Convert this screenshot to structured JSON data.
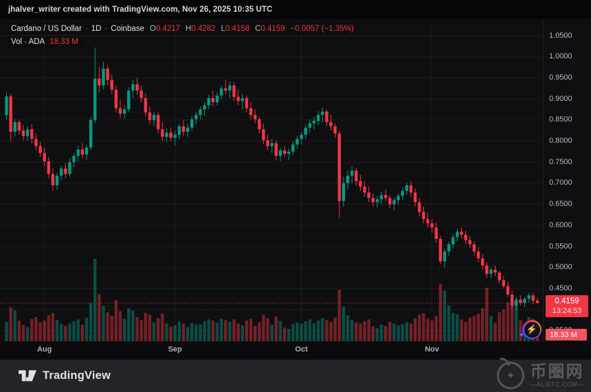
{
  "attribution": {
    "text": "jhalver_writer created with TradingView.com, Nov 26, 2025 10:35 UTC"
  },
  "legend": {
    "symbol": "Cardano / US Dollar",
    "separator": "·",
    "interval": "1D",
    "exchange": "Coinbase",
    "ohlc": {
      "o_label": "O",
      "o": "0.4217",
      "h_label": "H",
      "h": "0.4282",
      "l_label": "L",
      "l": "0.4158",
      "c_label": "C",
      "c": "0.4159",
      "change": "−0.0057 (−1.35%)"
    },
    "volume_row": {
      "label": "Vol · ADA",
      "value": "18.33 M"
    }
  },
  "price_scale": {
    "badge": {
      "price": "0.4159",
      "countdown": "13:24:53"
    },
    "volume_badge": "18.33 M"
  },
  "footer": {
    "brand": "TradingView"
  },
  "watermark": {
    "site_name": "币圈网",
    "site_domain": "—ALIBTC.COM—",
    "star_icon": "✦"
  },
  "flash_sticker": {
    "bolt_icon": "⚡",
    "spark_icon": "✦"
  },
  "colors": {
    "up": "#089981",
    "down": "#F23645",
    "vol_up": "rgba(8,153,129,0.45)",
    "vol_down": "rgba(242,54,69,0.45)",
    "price_badge_bg": "#F23645",
    "vol_badge_bg": "#F7525F",
    "grid": "rgba(255,255,255,0.06)",
    "axis_text": "#B8BBC2",
    "background": "#0F0F11"
  },
  "chart_data": {
    "type": "candlestick",
    "title": "Cardano / US Dollar · 1D · Coinbase",
    "grid": true,
    "legend_position": "top-left",
    "ylim": [
      0.33,
      1.09
    ],
    "last_close": 0.4159,
    "price_ticks": [
      {
        "label": "1.0500",
        "value": 1.05
      },
      {
        "label": "1.0000",
        "value": 1.0
      },
      {
        "label": "0.9500",
        "value": 0.95
      },
      {
        "label": "0.9000",
        "value": 0.9
      },
      {
        "label": "0.8500",
        "value": 0.85
      },
      {
        "label": "0.8000",
        "value": 0.8
      },
      {
        "label": "0.7500",
        "value": 0.75
      },
      {
        "label": "0.7000",
        "value": 0.7
      },
      {
        "label": "0.6500",
        "value": 0.65
      },
      {
        "label": "0.6000",
        "value": 0.6
      },
      {
        "label": "0.5500",
        "value": 0.55
      },
      {
        "label": "0.5000",
        "value": 0.5
      },
      {
        "label": "0.4500",
        "value": 0.45
      },
      {
        "label": "0.4000",
        "value": 0.4
      },
      {
        "label": "0.3500",
        "value": 0.35
      }
    ],
    "months": [
      {
        "label": "Aug",
        "index": 9
      },
      {
        "label": "Sep",
        "index": 40
      },
      {
        "label": "Oct",
        "index": 70
      },
      {
        "label": "Nov",
        "index": 101
      }
    ],
    "volume_unit": "M",
    "candles_format": [
      "open",
      "high",
      "low",
      "close",
      "volume_millions"
    ],
    "candles": [
      [
        0.862,
        0.915,
        0.85,
        0.906,
        65
      ],
      [
        0.906,
        0.912,
        0.8,
        0.822,
        115
      ],
      [
        0.822,
        0.852,
        0.812,
        0.845,
        105
      ],
      [
        0.845,
        0.85,
        0.815,
        0.825,
        70
      ],
      [
        0.825,
        0.838,
        0.802,
        0.812,
        55
      ],
      [
        0.812,
        0.835,
        0.8,
        0.828,
        48
      ],
      [
        0.828,
        0.84,
        0.795,
        0.805,
        75
      ],
      [
        0.805,
        0.818,
        0.778,
        0.788,
        82
      ],
      [
        0.788,
        0.798,
        0.762,
        0.772,
        64
      ],
      [
        0.772,
        0.785,
        0.74,
        0.752,
        70
      ],
      [
        0.752,
        0.762,
        0.712,
        0.722,
        88
      ],
      [
        0.722,
        0.735,
        0.682,
        0.695,
        96
      ],
      [
        0.695,
        0.725,
        0.685,
        0.718,
        72
      ],
      [
        0.718,
        0.742,
        0.708,
        0.735,
        58
      ],
      [
        0.735,
        0.748,
        0.712,
        0.722,
        52
      ],
      [
        0.722,
        0.758,
        0.715,
        0.75,
        60
      ],
      [
        0.75,
        0.772,
        0.738,
        0.765,
        68
      ],
      [
        0.765,
        0.788,
        0.752,
        0.78,
        74
      ],
      [
        0.78,
        0.795,
        0.758,
        0.768,
        56
      ],
      [
        0.768,
        0.792,
        0.755,
        0.785,
        80
      ],
      [
        0.785,
        0.858,
        0.778,
        0.85,
        130
      ],
      [
        0.85,
        1.022,
        0.842,
        0.948,
        280
      ],
      [
        0.948,
        0.975,
        0.915,
        0.932,
        160
      ],
      [
        0.932,
        0.988,
        0.922,
        0.972,
        120
      ],
      [
        0.972,
        0.98,
        0.932,
        0.945,
        98
      ],
      [
        0.945,
        0.958,
        0.912,
        0.922,
        86
      ],
      [
        0.922,
        0.932,
        0.868,
        0.878,
        140
      ],
      [
        0.878,
        0.898,
        0.855,
        0.865,
        102
      ],
      [
        0.865,
        0.885,
        0.852,
        0.875,
        76
      ],
      [
        0.875,
        0.928,
        0.868,
        0.92,
        112
      ],
      [
        0.92,
        0.945,
        0.902,
        0.935,
        104
      ],
      [
        0.935,
        0.95,
        0.91,
        0.92,
        82
      ],
      [
        0.92,
        0.932,
        0.892,
        0.902,
        72
      ],
      [
        0.902,
        0.912,
        0.858,
        0.868,
        96
      ],
      [
        0.868,
        0.882,
        0.84,
        0.85,
        90
      ],
      [
        0.85,
        0.87,
        0.836,
        0.862,
        64
      ],
      [
        0.862,
        0.868,
        0.818,
        0.828,
        78
      ],
      [
        0.828,
        0.845,
        0.8,
        0.81,
        94
      ],
      [
        0.81,
        0.83,
        0.798,
        0.82,
        60
      ],
      [
        0.82,
        0.832,
        0.8,
        0.808,
        50
      ],
      [
        0.808,
        0.825,
        0.79,
        0.815,
        54
      ],
      [
        0.815,
        0.842,
        0.805,
        0.835,
        66
      ],
      [
        0.835,
        0.85,
        0.812,
        0.822,
        60
      ],
      [
        0.822,
        0.84,
        0.81,
        0.832,
        48
      ],
      [
        0.832,
        0.86,
        0.825,
        0.852,
        62
      ],
      [
        0.852,
        0.87,
        0.84,
        0.862,
        56
      ],
      [
        0.862,
        0.882,
        0.852,
        0.875,
        58
      ],
      [
        0.875,
        0.892,
        0.86,
        0.885,
        68
      ],
      [
        0.885,
        0.91,
        0.875,
        0.902,
        74
      ],
      [
        0.902,
        0.92,
        0.882,
        0.892,
        70
      ],
      [
        0.892,
        0.915,
        0.885,
        0.908,
        62
      ],
      [
        0.908,
        0.932,
        0.898,
        0.925,
        76
      ],
      [
        0.925,
        0.945,
        0.912,
        0.92,
        72
      ],
      [
        0.92,
        0.942,
        0.902,
        0.932,
        66
      ],
      [
        0.932,
        0.94,
        0.895,
        0.905,
        74
      ],
      [
        0.905,
        0.922,
        0.885,
        0.895,
        60
      ],
      [
        0.895,
        0.912,
        0.875,
        0.902,
        54
      ],
      [
        0.902,
        0.908,
        0.868,
        0.878,
        70
      ],
      [
        0.878,
        0.892,
        0.852,
        0.862,
        76
      ],
      [
        0.862,
        0.875,
        0.842,
        0.852,
        52
      ],
      [
        0.852,
        0.858,
        0.818,
        0.828,
        64
      ],
      [
        0.828,
        0.842,
        0.792,
        0.802,
        90
      ],
      [
        0.802,
        0.815,
        0.778,
        0.788,
        78
      ],
      [
        0.788,
        0.805,
        0.772,
        0.795,
        56
      ],
      [
        0.795,
        0.802,
        0.755,
        0.765,
        84
      ],
      [
        0.765,
        0.785,
        0.752,
        0.778,
        68
      ],
      [
        0.778,
        0.788,
        0.762,
        0.77,
        46
      ],
      [
        0.77,
        0.782,
        0.755,
        0.775,
        42
      ],
      [
        0.775,
        0.8,
        0.768,
        0.792,
        58
      ],
      [
        0.792,
        0.812,
        0.782,
        0.805,
        64
      ],
      [
        0.805,
        0.822,
        0.792,
        0.815,
        60
      ],
      [
        0.815,
        0.84,
        0.805,
        0.832,
        68
      ],
      [
        0.832,
        0.852,
        0.82,
        0.842,
        74
      ],
      [
        0.842,
        0.858,
        0.828,
        0.848,
        62
      ],
      [
        0.848,
        0.872,
        0.838,
        0.862,
        70
      ],
      [
        0.862,
        0.88,
        0.845,
        0.87,
        78
      ],
      [
        0.87,
        0.875,
        0.835,
        0.845,
        72
      ],
      [
        0.845,
        0.862,
        0.825,
        0.835,
        66
      ],
      [
        0.835,
        0.842,
        0.808,
        0.818,
        80
      ],
      [
        0.818,
        0.825,
        0.618,
        0.658,
        175
      ],
      [
        0.658,
        0.715,
        0.645,
        0.7,
        118
      ],
      [
        0.7,
        0.73,
        0.685,
        0.718,
        88
      ],
      [
        0.718,
        0.74,
        0.7,
        0.73,
        72
      ],
      [
        0.73,
        0.736,
        0.695,
        0.705,
        64
      ],
      [
        0.705,
        0.72,
        0.682,
        0.692,
        60
      ],
      [
        0.692,
        0.705,
        0.668,
        0.678,
        68
      ],
      [
        0.678,
        0.692,
        0.655,
        0.665,
        74
      ],
      [
        0.665,
        0.676,
        0.645,
        0.655,
        50
      ],
      [
        0.655,
        0.67,
        0.642,
        0.662,
        44
      ],
      [
        0.662,
        0.68,
        0.65,
        0.672,
        56
      ],
      [
        0.672,
        0.685,
        0.658,
        0.665,
        52
      ],
      [
        0.665,
        0.672,
        0.64,
        0.65,
        66
      ],
      [
        0.65,
        0.666,
        0.636,
        0.66,
        60
      ],
      [
        0.66,
        0.676,
        0.648,
        0.67,
        54
      ],
      [
        0.67,
        0.69,
        0.66,
        0.682,
        58
      ],
      [
        0.682,
        0.702,
        0.672,
        0.695,
        64
      ],
      [
        0.695,
        0.705,
        0.668,
        0.678,
        60
      ],
      [
        0.678,
        0.688,
        0.645,
        0.655,
        78
      ],
      [
        0.655,
        0.665,
        0.622,
        0.632,
        90
      ],
      [
        0.632,
        0.645,
        0.605,
        0.615,
        95
      ],
      [
        0.615,
        0.63,
        0.595,
        0.605,
        76
      ],
      [
        0.605,
        0.615,
        0.582,
        0.595,
        70
      ],
      [
        0.595,
        0.608,
        0.558,
        0.568,
        86
      ],
      [
        0.568,
        0.575,
        0.508,
        0.515,
        195
      ],
      [
        0.515,
        0.545,
        0.5,
        0.538,
        172
      ],
      [
        0.538,
        0.562,
        0.528,
        0.555,
        122
      ],
      [
        0.555,
        0.58,
        0.545,
        0.572,
        96
      ],
      [
        0.572,
        0.592,
        0.562,
        0.585,
        92
      ],
      [
        0.585,
        0.596,
        0.568,
        0.578,
        74
      ],
      [
        0.578,
        0.588,
        0.555,
        0.565,
        66
      ],
      [
        0.565,
        0.576,
        0.545,
        0.555,
        80
      ],
      [
        0.555,
        0.562,
        0.528,
        0.538,
        86
      ],
      [
        0.538,
        0.548,
        0.512,
        0.522,
        94
      ],
      [
        0.522,
        0.532,
        0.495,
        0.505,
        112
      ],
      [
        0.505,
        0.512,
        0.475,
        0.485,
        182
      ],
      [
        0.485,
        0.5,
        0.475,
        0.495,
        86
      ],
      [
        0.495,
        0.505,
        0.48,
        0.488,
        62
      ],
      [
        0.488,
        0.492,
        0.462,
        0.47,
        98
      ],
      [
        0.47,
        0.48,
        0.45,
        0.456,
        108
      ],
      [
        0.456,
        0.466,
        0.43,
        0.436,
        132
      ],
      [
        0.436,
        0.446,
        0.402,
        0.41,
        148
      ],
      [
        0.41,
        0.43,
        0.398,
        0.424,
        128
      ],
      [
        0.424,
        0.434,
        0.41,
        0.416,
        72
      ],
      [
        0.416,
        0.43,
        0.406,
        0.426,
        58
      ],
      [
        0.426,
        0.44,
        0.418,
        0.434,
        82
      ],
      [
        0.434,
        0.439,
        0.414,
        0.4216,
        76
      ],
      [
        0.4217,
        0.4282,
        0.4158,
        0.4159,
        18.33
      ]
    ]
  }
}
